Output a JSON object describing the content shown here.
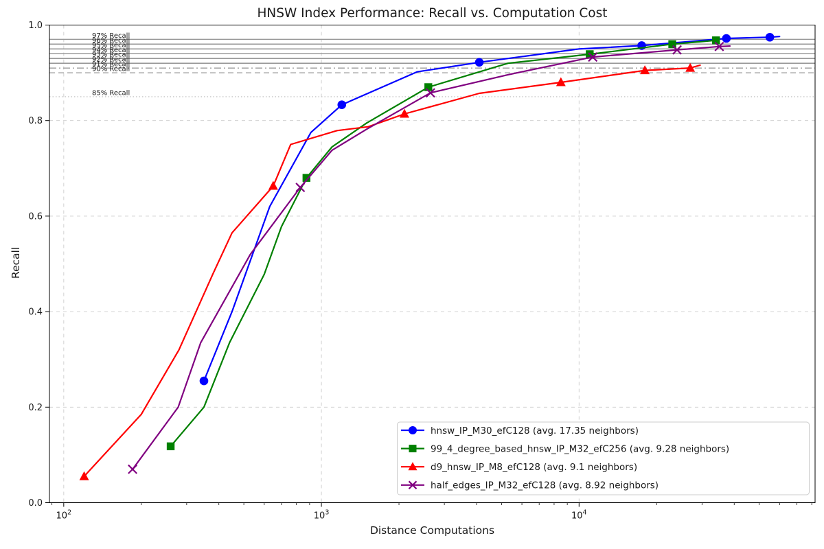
{
  "chart_data": {
    "type": "line",
    "title": "HNSW Index Performance: Recall vs. Computation Cost",
    "xlabel": "Distance Computations",
    "ylabel": "Recall",
    "x_scale": "log",
    "xlim": [
      88,
      82400
    ],
    "ylim": [
      0.0,
      1.0
    ],
    "grid": {
      "show": true,
      "color": "#cccccc",
      "style": "dashed"
    },
    "legend_position": "lower right",
    "x_ticks": [
      {
        "value": 100,
        "label": "10^2"
      },
      {
        "value": 1000,
        "label": "10^3"
      },
      {
        "value": 10000,
        "label": "10^4"
      }
    ],
    "y_ticks": [
      {
        "value": 0.0,
        "label": "0.0"
      },
      {
        "value": 0.2,
        "label": "0.2"
      },
      {
        "value": 0.4,
        "label": "0.4"
      },
      {
        "value": 0.6,
        "label": "0.6"
      },
      {
        "value": 0.8,
        "label": "0.8"
      },
      {
        "value": 1.0,
        "label": "1.0"
      }
    ],
    "reference_lines": [
      {
        "value": 0.97,
        "label": "97% Recall",
        "style": "solid",
        "color": "#999999"
      },
      {
        "value": 0.96,
        "label": "96% Recall",
        "style": "solid",
        "color": "#999999"
      },
      {
        "value": 0.95,
        "label": "95% Recall",
        "style": "solid",
        "color": "#999999"
      },
      {
        "value": 0.94,
        "label": "94% Recall",
        "style": "solid",
        "color": "#999999"
      },
      {
        "value": 0.93,
        "label": "93% Recall",
        "style": "solid",
        "color": "#999999"
      },
      {
        "value": 0.92,
        "label": "92% Recall",
        "style": "solid",
        "color": "#999999"
      },
      {
        "value": 0.91,
        "label": "91% Recall",
        "style": "dashdot",
        "color": "#999999"
      },
      {
        "value": 0.9,
        "label": "90% Recall",
        "style": "dashed",
        "color": "#a8a8a8"
      },
      {
        "value": 0.85,
        "label": "85% Recall",
        "style": "dotted",
        "color": "#c5c5c5"
      }
    ],
    "series": [
      {
        "name": "hnsw_IP_M30_efC128 (avg. 17.35 neighbors)",
        "color": "#0000ff",
        "marker": "circle",
        "points": [
          [
            350,
            0.255,
            1
          ],
          [
            450,
            0.4,
            0
          ],
          [
            630,
            0.62,
            0
          ],
          [
            910,
            0.775,
            0
          ],
          [
            1200,
            0.833,
            1
          ],
          [
            2350,
            0.902,
            0
          ],
          [
            4100,
            0.922,
            1
          ],
          [
            10000,
            0.95,
            0
          ],
          [
            17500,
            0.957,
            1
          ],
          [
            37300,
            0.972,
            1
          ],
          [
            55000,
            0.9745,
            1
          ],
          [
            60000,
            0.976,
            0
          ]
        ]
      },
      {
        "name": "99_4_degree_based_hnsw_IP_M32_efC256 (avg. 9.28 neighbors)",
        "color": "#008000",
        "marker": "square",
        "points": [
          [
            260,
            0.118,
            1
          ],
          [
            350,
            0.2,
            0
          ],
          [
            440,
            0.335,
            0
          ],
          [
            600,
            0.478,
            0
          ],
          [
            700,
            0.578,
            0
          ],
          [
            875,
            0.68,
            1
          ],
          [
            1100,
            0.745,
            0
          ],
          [
            1500,
            0.795,
            0
          ],
          [
            2600,
            0.87,
            1
          ],
          [
            5300,
            0.92,
            0
          ],
          [
            11000,
            0.939,
            1
          ],
          [
            23000,
            0.96,
            1
          ],
          [
            34000,
            0.968,
            1
          ]
        ]
      },
      {
        "name": "d9_hnsw_IP_M8_efC128 (avg. 9.1 neighbors)",
        "color": "#ff0000",
        "marker": "triangle",
        "points": [
          [
            120,
            0.055,
            1
          ],
          [
            200,
            0.185,
            0
          ],
          [
            280,
            0.32,
            0
          ],
          [
            380,
            0.48,
            0
          ],
          [
            450,
            0.565,
            0
          ],
          [
            650,
            0.663,
            1
          ],
          [
            760,
            0.75,
            0
          ],
          [
            1150,
            0.779,
            0
          ],
          [
            1520,
            0.787,
            0
          ],
          [
            2100,
            0.814,
            1
          ],
          [
            4100,
            0.857,
            0
          ],
          [
            8500,
            0.88,
            1
          ],
          [
            18000,
            0.905,
            1
          ],
          [
            27000,
            0.91,
            1
          ],
          [
            29500,
            0.916,
            0
          ]
        ]
      },
      {
        "name": "half_edges_IP_M32_efC128 (avg. 8.92 neighbors)",
        "color": "#800080",
        "marker": "x",
        "points": [
          [
            185,
            0.07,
            1
          ],
          [
            278,
            0.2,
            0
          ],
          [
            340,
            0.335,
            0
          ],
          [
            530,
            0.52,
            0
          ],
          [
            828,
            0.66,
            1
          ],
          [
            1100,
            0.738,
            0
          ],
          [
            1500,
            0.782,
            0
          ],
          [
            2650,
            0.858,
            1
          ],
          [
            5300,
            0.896,
            0
          ],
          [
            11300,
            0.933,
            1
          ],
          [
            24000,
            0.948,
            1
          ],
          [
            35000,
            0.955,
            1
          ],
          [
            38500,
            0.956,
            0
          ]
        ]
      }
    ]
  }
}
